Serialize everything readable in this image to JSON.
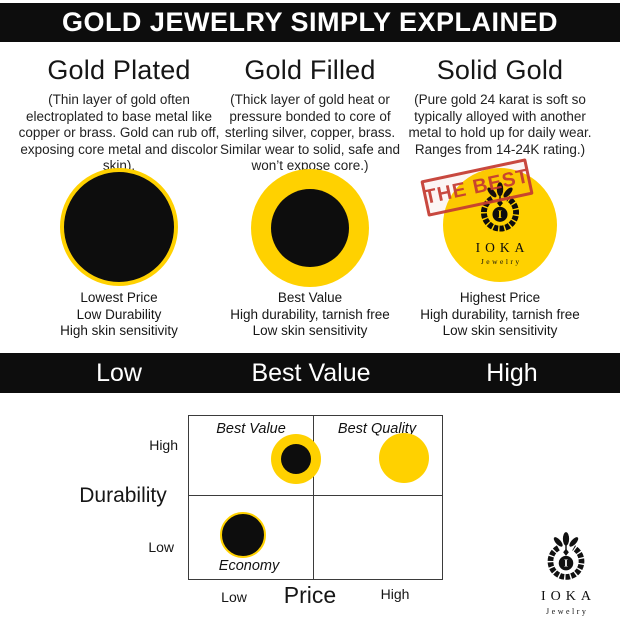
{
  "header": {
    "title": "GOLD JEWELRY SIMPLY EXPLAINED"
  },
  "columns": [
    {
      "title": "Gold Plated",
      "description": "(Thin layer of gold often electroplated to base metal like copper or brass. Gold can rub off, exposing core metal and discolor skin).",
      "stats": [
        "Lowest Price",
        "Low Durability",
        "High skin sensitivity"
      ]
    },
    {
      "title": "Gold Filled",
      "description": "(Thick layer of gold heat or pressure bonded to core of sterling silver, copper, brass. Similar wear to solid, safe and won’t expose core.)",
      "stats": [
        "Best Value",
        "High durability, tarnish free",
        "Low skin sensitivity"
      ]
    },
    {
      "title": "Solid Gold",
      "description": "(Pure gold 24 karat is soft so typically alloyed with another metal to hold up for daily wear. Ranges from 14-24K rating.)",
      "stats": [
        "Highest Price",
        "High durability, tarnish free",
        "Low skin sensitivity"
      ],
      "badge": "THE BEST"
    }
  ],
  "scale_bar": {
    "labels": [
      "Low",
      "Best Value",
      "High"
    ]
  },
  "chart_data": {
    "type": "scatter",
    "title": "",
    "xlabel": "Price",
    "ylabel": "Durability",
    "x_tick_labels": [
      "Low",
      "High"
    ],
    "y_tick_labels": [
      "High",
      "Low"
    ],
    "grid": "2x2 quadrants",
    "legend": false,
    "quadrant_labels": {
      "top_left": "Best Value",
      "top_right": "Best Quality",
      "bottom_left": "Economy"
    },
    "points": [
      {
        "label": "Best Value",
        "product": "Gold Filled",
        "x": 0.423,
        "y": 0.736,
        "marker": "thick gold ring with black core"
      },
      {
        "label": "Best Quality",
        "product": "Solid Gold",
        "x": 0.85,
        "y": 0.742,
        "marker": "solid gold circle"
      },
      {
        "label": "Economy",
        "product": "Gold Plated",
        "x": 0.213,
        "y": 0.27,
        "marker": "black circle with thin gold ring"
      }
    ]
  },
  "brand": {
    "name": "IOKA",
    "sub": "Jewelry"
  },
  "colors": {
    "gold": "#FFD100",
    "black": "#0D0D0D",
    "stamp_red": "#C43B31",
    "text": "#1A1A1A"
  }
}
